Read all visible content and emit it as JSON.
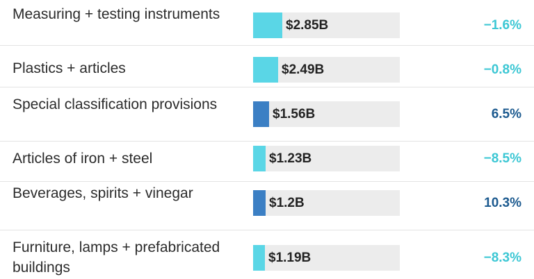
{
  "chart_data": {
    "type": "bar",
    "orientation": "horizontal",
    "categories": [
      "Measuring + testing instruments",
      "Plastics + articles",
      "Special classification provisions",
      "Articles of iron + steel",
      "Beverages, spirits + vinegar",
      "Furniture, lamps + prefabricated buildings"
    ],
    "values": [
      2.85,
      2.49,
      1.56,
      1.23,
      1.2,
      1.19
    ],
    "value_labels": [
      "$2.85B",
      "$2.49B",
      "$1.56B",
      "$1.23B",
      "$1.2B",
      "$1.19B"
    ],
    "changes": [
      "−1.6%",
      "−0.8%",
      "6.5%",
      "−8.5%",
      "10.3%",
      "−8.3%"
    ],
    "change_direction": [
      "down",
      "down",
      "up",
      "down",
      "up",
      "down"
    ],
    "grid": false
  },
  "colors": {
    "up": "#3b7fc4",
    "down": "#5ad6e6",
    "up_text": "#1c5a8f",
    "down_text": "#3cc7d4",
    "track": "#ececec"
  }
}
